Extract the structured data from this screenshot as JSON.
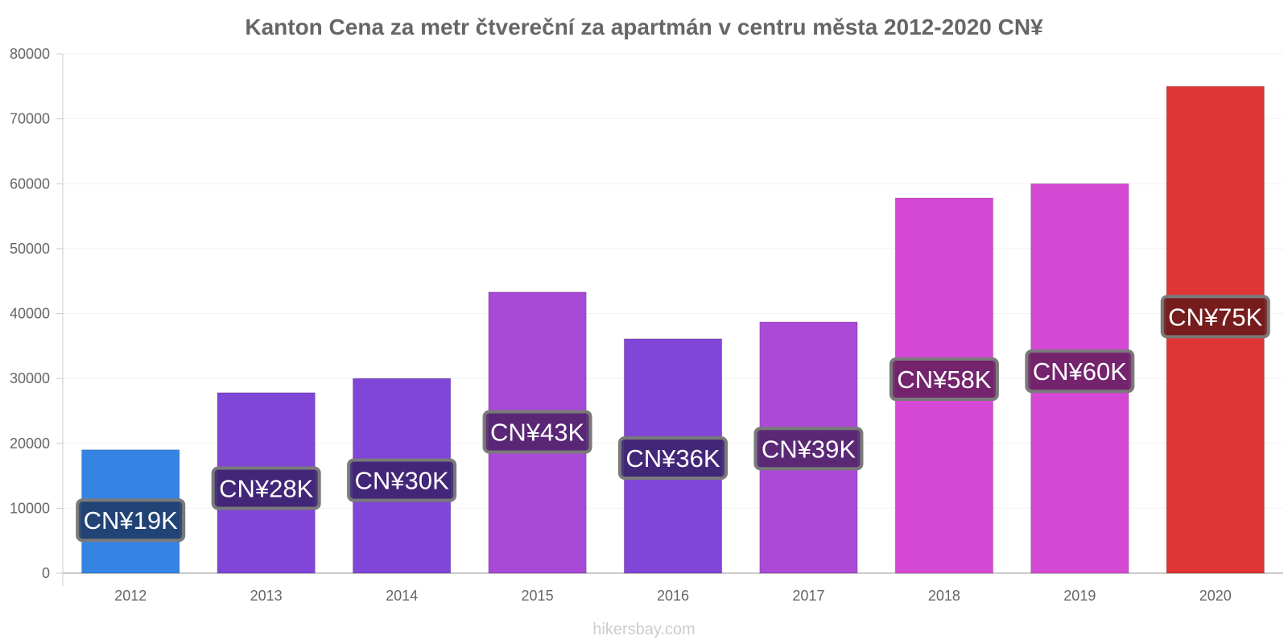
{
  "chart_data": {
    "type": "bar",
    "title": "Kanton Cena za metr čtvereční za apartmán v centru města 2012-2020 CN¥",
    "xlabel": "",
    "ylabel": "",
    "categories": [
      "2012",
      "2013",
      "2014",
      "2015",
      "2016",
      "2017",
      "2018",
      "2019",
      "2020"
    ],
    "values": [
      19000,
      27800,
      30000,
      43300,
      36100,
      38700,
      57800,
      60000,
      75000
    ],
    "data_labels": [
      "CN¥19K",
      "CN¥28K",
      "CN¥30K",
      "CN¥43K",
      "CN¥36K",
      "CN¥39K",
      "CN¥58K",
      "CN¥60K",
      "CN¥75K"
    ],
    "bar_colors": [
      "#3584e4",
      "#8046d8",
      "#8046d8",
      "#a849d8",
      "#8046d8",
      "#ac4ad8",
      "#d548d3",
      "#d548d3",
      "#e03535"
    ],
    "label_bg_colors": [
      "#1f3e6b",
      "#3d2470",
      "#3d2470",
      "#52256d",
      "#3d2470",
      "#52256d",
      "#6b2264",
      "#6b2264",
      "#6e1a1a"
    ],
    "ylim": [
      0,
      80000
    ],
    "yticks": [
      0,
      10000,
      20000,
      30000,
      40000,
      50000,
      60000,
      70000,
      80000
    ],
    "grid": true,
    "legend": "none"
  },
  "watermark": "hikersbay.com"
}
